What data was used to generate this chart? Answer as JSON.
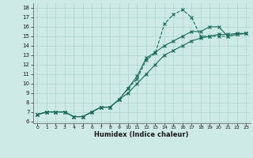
{
  "xlabel": "Humidex (Indice chaleur)",
  "bg_color": "#ceeae6",
  "grid_color": "#aed4cf",
  "line_color": "#1a6b5a",
  "xlim": [
    -0.5,
    23.5
  ],
  "ylim": [
    5.8,
    18.5
  ],
  "xticks": [
    0,
    1,
    2,
    3,
    4,
    5,
    6,
    7,
    8,
    9,
    10,
    11,
    12,
    13,
    14,
    15,
    16,
    17,
    18,
    19,
    20,
    21,
    22,
    23
  ],
  "yticks": [
    6,
    7,
    8,
    9,
    10,
    11,
    12,
    13,
    14,
    15,
    16,
    17,
    18
  ],
  "series1_x": [
    0,
    1,
    2,
    3,
    4,
    5,
    6,
    7,
    8,
    9,
    10,
    11,
    12,
    13,
    14,
    15,
    16,
    17,
    18,
    19,
    20,
    21,
    22,
    23
  ],
  "series1_y": [
    6.7,
    7.0,
    7.0,
    7.0,
    6.5,
    6.5,
    7.0,
    7.5,
    7.5,
    8.3,
    9.5,
    10.5,
    12.5,
    13.2,
    16.3,
    17.3,
    17.8,
    17.0,
    15.0,
    15.0,
    15.0,
    15.0,
    15.2,
    15.3
  ],
  "series2_x": [
    0,
    1,
    2,
    3,
    4,
    5,
    6,
    7,
    8,
    9,
    10,
    11,
    12,
    13,
    14,
    15,
    16,
    17,
    18,
    19,
    20,
    21,
    22,
    23
  ],
  "series2_y": [
    6.7,
    7.0,
    7.0,
    7.0,
    6.5,
    6.5,
    7.0,
    7.5,
    7.5,
    8.3,
    9.5,
    10.8,
    12.7,
    13.3,
    14.0,
    14.5,
    15.0,
    15.5,
    15.5,
    16.0,
    16.0,
    15.0,
    15.2,
    15.3
  ],
  "series3_x": [
    0,
    1,
    2,
    3,
    4,
    5,
    6,
    7,
    8,
    9,
    10,
    11,
    12,
    13,
    14,
    15,
    16,
    17,
    18,
    19,
    20,
    21,
    22,
    23
  ],
  "series3_y": [
    6.7,
    7.0,
    7.0,
    7.0,
    6.5,
    6.5,
    7.0,
    7.5,
    7.5,
    8.3,
    9.0,
    10.0,
    11.0,
    12.0,
    13.0,
    13.5,
    14.0,
    14.5,
    14.8,
    15.0,
    15.2,
    15.2,
    15.3,
    15.3
  ]
}
